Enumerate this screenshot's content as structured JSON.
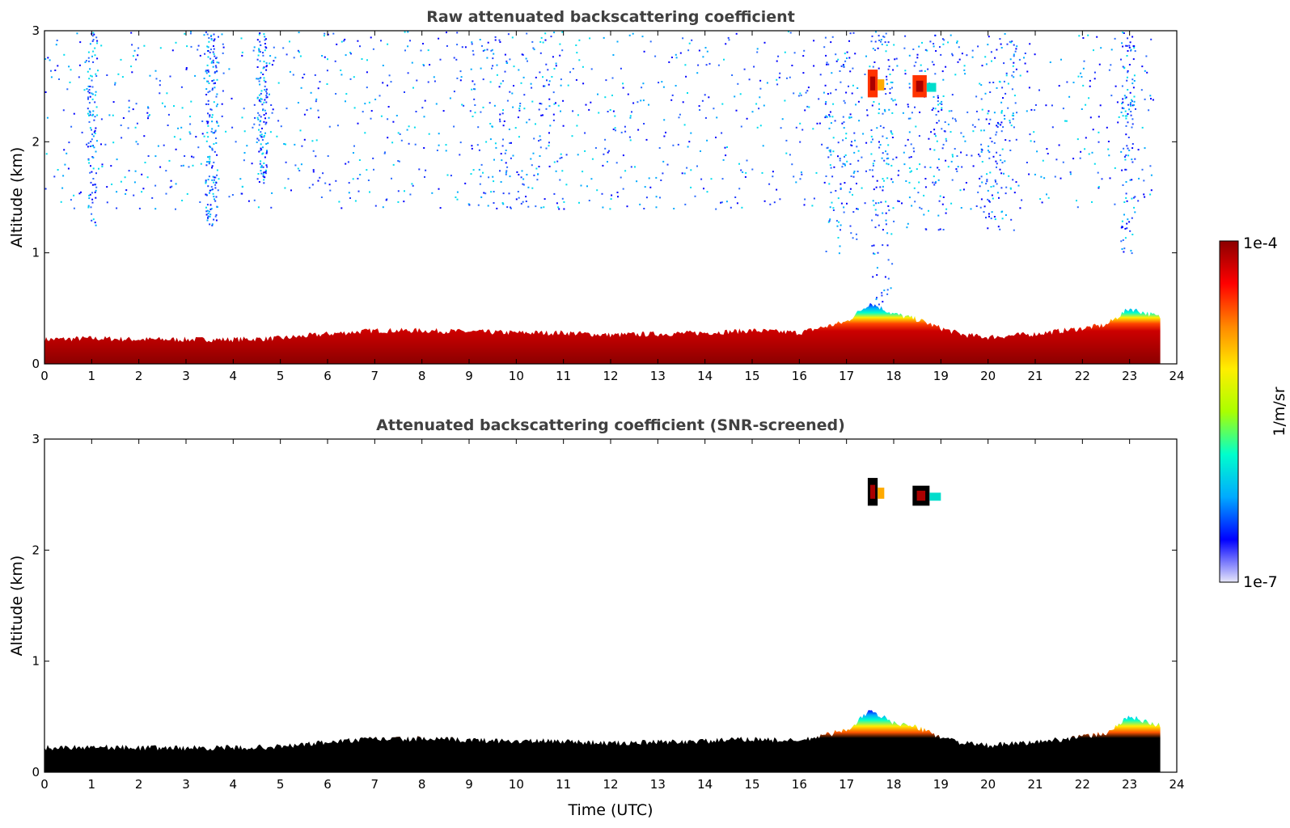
{
  "chart_data": [
    {
      "type": "heatmap",
      "title": "Raw attenuated backscattering coefficient",
      "xlabel": "",
      "ylabel": "Altitude (km)",
      "xlim": [
        0,
        24
      ],
      "ylim": [
        0,
        3
      ],
      "x_ticks": [
        "0",
        "1",
        "2",
        "3",
        "4",
        "5",
        "6",
        "7",
        "8",
        "9",
        "10",
        "11",
        "12",
        "13",
        "14",
        "15",
        "16",
        "17",
        "18",
        "19",
        "20",
        "21",
        "22",
        "23",
        "24"
      ],
      "y_ticks": [
        "0",
        "1",
        "2",
        "3"
      ],
      "data_end_time": 23.65,
      "boundary_layer_top_km": [
        [
          0,
          0.22
        ],
        [
          1,
          0.23
        ],
        [
          2,
          0.22
        ],
        [
          3,
          0.22
        ],
        [
          4,
          0.22
        ],
        [
          5,
          0.23
        ],
        [
          6,
          0.27
        ],
        [
          7,
          0.3
        ],
        [
          8,
          0.3
        ],
        [
          9,
          0.29
        ],
        [
          10,
          0.28
        ],
        [
          11,
          0.28
        ],
        [
          12,
          0.26
        ],
        [
          13,
          0.27
        ],
        [
          14,
          0.28
        ],
        [
          15,
          0.3
        ],
        [
          16,
          0.28
        ],
        [
          17,
          0.38
        ],
        [
          17.5,
          0.55
        ],
        [
          18,
          0.45
        ],
        [
          18.5,
          0.4
        ],
        [
          19,
          0.32
        ],
        [
          19.5,
          0.26
        ],
        [
          20,
          0.24
        ],
        [
          21,
          0.27
        ],
        [
          22,
          0.32
        ],
        [
          22.5,
          0.35
        ],
        [
          23,
          0.5
        ],
        [
          23.65,
          0.42
        ]
      ],
      "elevated_layers": [
        {
          "time_range": [
            17.45,
            17.8
          ],
          "altitude_km": [
            2.4,
            2.65
          ]
        },
        {
          "time_range": [
            18.4,
            18.9
          ],
          "altitude_km": [
            2.4,
            2.6
          ]
        }
      ]
    },
    {
      "type": "heatmap",
      "title": "Attenuated backscattering coefficient (SNR-screened)",
      "xlabel": "Time (UTC)",
      "ylabel": "Altitude (km)",
      "xlim": [
        0,
        24
      ],
      "ylim": [
        0,
        3
      ],
      "x_ticks": [
        "0",
        "1",
        "2",
        "3",
        "4",
        "5",
        "6",
        "7",
        "8",
        "9",
        "10",
        "11",
        "12",
        "13",
        "14",
        "15",
        "16",
        "17",
        "18",
        "19",
        "20",
        "21",
        "22",
        "23",
        "24"
      ],
      "y_ticks": [
        "0",
        "1",
        "2",
        "3"
      ],
      "data_end_time": 23.65,
      "elevated_layers": [
        {
          "time_range": [
            17.45,
            17.8
          ],
          "altitude_km": [
            2.4,
            2.65
          ]
        },
        {
          "time_range": [
            18.4,
            19.0
          ],
          "altitude_km": [
            2.4,
            2.58
          ]
        }
      ]
    }
  ],
  "colorbar": {
    "label": "1/m/sr",
    "min_label": "1e-7",
    "max_label": "1e-4",
    "scale": "log",
    "colors": [
      "#e6e6fa",
      "#0000ff",
      "#00aaff",
      "#00ffcc",
      "#aaff00",
      "#ffee00",
      "#ff8800",
      "#ff0000",
      "#8b0000"
    ]
  }
}
